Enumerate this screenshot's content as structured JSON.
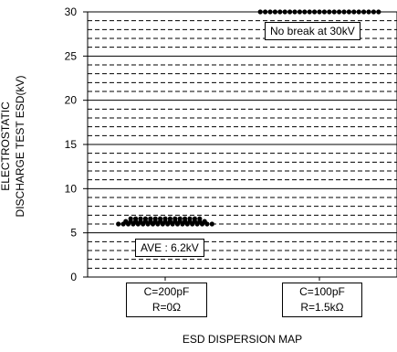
{
  "chart_data": {
    "type": "scatter",
    "xlabel": "ESD DISPERSION MAP",
    "ylabel_lines": [
      "ELECTROSTATIC",
      "DISCHARGE TEST ESD(kV)"
    ],
    "ylim": [
      0,
      30
    ],
    "yticks": [
      0,
      5,
      10,
      15,
      20,
      25,
      30
    ],
    "grid": "dashed horizontal lines every 1 kV, solid every 5 kV",
    "categories": [
      {
        "lines": [
          "C=200pF",
          "R=0Ω"
        ]
      },
      {
        "lines": [
          "C=100pF",
          "R=1.5kΩ"
        ]
      }
    ],
    "series": [
      {
        "category": 0,
        "values": [
          6.0,
          6.0,
          6.0,
          6.0,
          6.0,
          6.0,
          6.0,
          6.0,
          6.0,
          6.0,
          6.0,
          6.0,
          6.0,
          6.0,
          6.0,
          6.0,
          6.0,
          6.0,
          6.0,
          6.0,
          6.3,
          6.3,
          6.3,
          6.3,
          6.3,
          6.3,
          6.3,
          6.3,
          6.3,
          6.3,
          6.3,
          6.3,
          6.3,
          6.3,
          6.3,
          6.3,
          6.3,
          6.6,
          6.6,
          6.6,
          6.6,
          6.6,
          6.6,
          6.6,
          6.6,
          6.6,
          6.6,
          6.6,
          6.6,
          6.6,
          6.6,
          6.6
        ]
      },
      {
        "category": 1,
        "values": [
          30,
          30,
          30,
          30,
          30,
          30,
          30,
          30,
          30,
          30,
          30,
          30,
          30,
          30,
          30,
          30,
          30,
          30,
          30,
          30,
          30,
          30,
          30,
          30,
          30
        ]
      }
    ],
    "annotations": [
      {
        "text": "AVE : 6.2kV",
        "category": 0
      },
      {
        "text": "No break at 30kV",
        "category": 1
      }
    ]
  }
}
